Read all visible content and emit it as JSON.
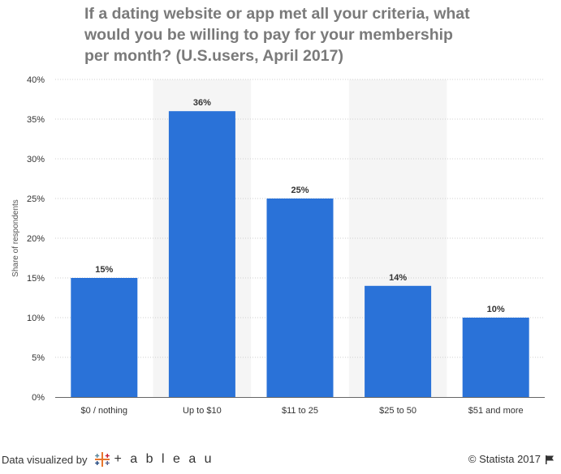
{
  "title": "If a dating website or app met all your criteria, what would you be willing to pay for your membership per month? (U.S.users, April 2017)",
  "footer": {
    "visualized_by": "Data visualized by",
    "tableau": "+ a b l e a u",
    "copyright": "© Statista 2017"
  },
  "colors": {
    "bar": "#2a72d8",
    "band": "#f5f5f5",
    "grid": "#cfcfcf"
  },
  "icons": {
    "tableau": "tableau-logo-icon",
    "flag": "flag-icon"
  },
  "chart_data": {
    "type": "bar",
    "categories": [
      "$0 / nothing",
      "Up to $10",
      "$11 to 25",
      "$25 to 50",
      "$51 and more"
    ],
    "values": [
      15,
      36,
      25,
      14,
      10
    ],
    "value_labels": [
      "15%",
      "36%",
      "25%",
      "14%",
      "10%"
    ],
    "ylabel": "Share of respondents",
    "ylim": [
      0,
      40
    ],
    "yticks": [
      0,
      5,
      10,
      15,
      20,
      25,
      30,
      35,
      40
    ],
    "ytick_labels": [
      "0%",
      "5%",
      "10%",
      "15%",
      "20%",
      "25%",
      "30%",
      "35%",
      "40%"
    ],
    "grid": true
  }
}
